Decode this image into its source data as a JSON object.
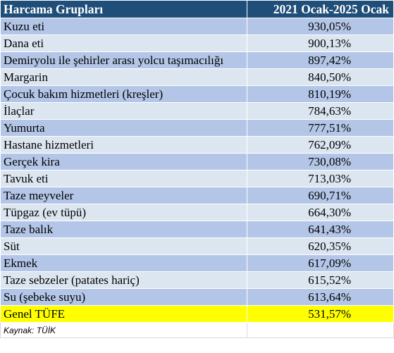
{
  "header": {
    "group_label": "Harcama Grupları",
    "period_label": "2021 Ocak-2025 Ocak"
  },
  "rows": [
    {
      "label": "Kuzu eti",
      "value": "930,05%"
    },
    {
      "label": "Dana eti",
      "value": "900,13%"
    },
    {
      "label": "Demiryolu ile şehirler arası yolcu taşımacılığı",
      "value": "897,42%"
    },
    {
      "label": "Margarin",
      "value": "840,50%"
    },
    {
      "label": "Çocuk bakım hizmetleri (kreşler)",
      "value": "810,19%"
    },
    {
      "label": "İlaçlar",
      "value": "784,63%"
    },
    {
      "label": "Yumurta",
      "value": "777,51%"
    },
    {
      "label": "Hastane hizmetleri",
      "value": "762,09%"
    },
    {
      "label": "Gerçek kira",
      "value": "730,08%"
    },
    {
      "label": "Tavuk eti",
      "value": "713,03%"
    },
    {
      "label": "Taze meyveler",
      "value": "690,71%"
    },
    {
      "label": "Tüpgaz (ev tüpü)",
      "value": "664,30%"
    },
    {
      "label": "Taze balık",
      "value": "641,43%"
    },
    {
      "label": "Süt",
      "value": "620,35%"
    },
    {
      "label": "Ekmek",
      "value": "617,09%"
    },
    {
      "label": "Taze sebzeler (patates hariç)",
      "value": "615,52%"
    },
    {
      "label": "Su (şebeke suyu)",
      "value": "613,64%"
    }
  ],
  "total": {
    "label": "Genel TÜFE",
    "value": "531,57%"
  },
  "source": "Kaynak: TÜİK",
  "colors": {
    "header_bg": "#1f4e79",
    "row_dark": "#b4c6e7",
    "row_light": "#dce6f1",
    "total_highlight": "#ffff00"
  }
}
